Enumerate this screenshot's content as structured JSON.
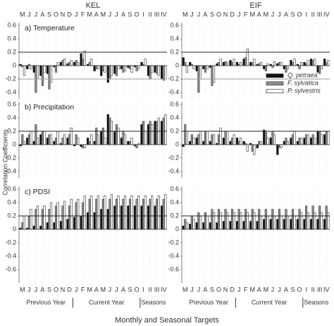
{
  "figure": {
    "columns": [
      "KEL",
      "EIF"
    ],
    "ylabel": "Correlation Coefficients",
    "xlabel": "Monthly and Seasonal Targets",
    "groups": [
      "Previous Year",
      "Current Year",
      "Seasons"
    ]
  },
  "chart_data": [
    {
      "type": "bar",
      "title": "a) Temperature",
      "categories": [
        "M",
        "J",
        "J",
        "A",
        "S",
        "O",
        "N",
        "D",
        "J",
        "F",
        "M",
        "A",
        "M",
        "J",
        "J",
        "A",
        "S",
        "O",
        "I",
        "II",
        "III",
        "IV"
      ],
      "series": [
        {
          "color": "#111111",
          "values": [
            0.02,
            -0.05,
            -0.1,
            -0.15,
            -0.12,
            -0.02,
            0.05,
            0.03,
            0.05,
            0.18,
            0.02,
            -0.08,
            -0.15,
            -0.25,
            -0.12,
            -0.05,
            -0.03,
            -0.02,
            0.05,
            -0.15,
            -0.1,
            -0.2
          ]
        },
        {
          "color": "#8a8a8a",
          "values": [
            -0.02,
            0.02,
            -0.4,
            -0.3,
            -0.35,
            -0.1,
            0.08,
            0.05,
            0.08,
            0.1,
            0.05,
            -0.05,
            -0.08,
            -0.2,
            -0.15,
            -0.1,
            -0.05,
            -0.08,
            0.02,
            -0.2,
            -0.12,
            -0.22
          ]
        },
        {
          "color": "#ffffff",
          "values": [
            -0.15,
            -0.05,
            -0.2,
            -0.1,
            -0.25,
            0.05,
            0.1,
            0.08,
            0.05,
            0.22,
            0.1,
            -0.05,
            -0.1,
            -0.15,
            -0.05,
            -0.08,
            -0.1,
            -0.05,
            0.1,
            -0.1,
            -0.15,
            -0.2
          ]
        }
      ],
      "ylim": [
        -0.5,
        0.6
      ],
      "yticks": [
        0.6,
        0.4,
        0.2,
        0,
        -0.2,
        -0.4
      ],
      "hlines": [
        0.2,
        -0.2
      ]
    },
    {
      "type": "bar",
      "categories": [
        "M",
        "J",
        "J",
        "A",
        "S",
        "O",
        "N",
        "D",
        "J",
        "F",
        "M",
        "A",
        "M",
        "J",
        "J",
        "A",
        "S",
        "O",
        "I",
        "II",
        "III",
        "IV"
      ],
      "series": [
        {
          "name": "Q. petraea",
          "color": "#111111",
          "values": [
            0.12,
            0.05,
            -0.08,
            -0.05,
            -0.03,
            0.03,
            0.05,
            0.08,
            0.05,
            0.1,
            0.05,
            0.02,
            -0.05,
            0.02,
            0.03,
            -0.05,
            0.08,
            0.02,
            0.05,
            0.1,
            -0.1,
            0.1
          ]
        },
        {
          "name": "F. sylvatica",
          "color": "#8a8a8a",
          "values": [
            0.05,
            0.02,
            -0.4,
            -0.1,
            -0.3,
            0.05,
            0.06,
            0.05,
            0.02,
            0.12,
            0.05,
            0.03,
            -0.08,
            -0.03,
            0.05,
            -0.1,
            0.05,
            -0.05,
            0.03,
            0.08,
            -0.12,
            0.05
          ]
        },
        {
          "name": "P. sylvestris",
          "color": "#ffffff",
          "values": [
            -0.1,
            -0.05,
            -0.2,
            -0.05,
            -0.25,
            0.1,
            0.05,
            0.1,
            0.05,
            0.25,
            0.1,
            0.05,
            0.03,
            0.06,
            0.05,
            -0.05,
            0.1,
            0.05,
            0.08,
            0.1,
            -0.05,
            0.08
          ]
        }
      ],
      "ylim": [
        -0.5,
        0.6
      ],
      "yticks": [
        0.6,
        0.4,
        0.2,
        0,
        -0.2,
        -0.4
      ],
      "hlines": [
        0.2,
        -0.2
      ],
      "legend": "lower right"
    },
    {
      "type": "bar",
      "title": "b) Precipitation",
      "categories": [
        "M",
        "J",
        "J",
        "A",
        "S",
        "O",
        "N",
        "D",
        "J",
        "F",
        "M",
        "A",
        "M",
        "J",
        "J",
        "A",
        "S",
        "O",
        "I",
        "II",
        "III",
        "IV"
      ],
      "series": [
        {
          "color": "#111111",
          "values": [
            -0.02,
            0.1,
            0.05,
            0.15,
            0.1,
            0.05,
            0.02,
            0.1,
            -0.02,
            -0.03,
            0.1,
            0.05,
            0.2,
            0.45,
            0.2,
            0.1,
            0.05,
            -0.02,
            0.3,
            0.3,
            0.35,
            0.35
          ]
        },
        {
          "color": "#8a8a8a",
          "values": [
            0.15,
            0.15,
            0.3,
            0.2,
            0.15,
            0.1,
            0.1,
            0.15,
            0.15,
            -0.05,
            0.05,
            0.25,
            0.25,
            0.4,
            0.3,
            0.2,
            0.05,
            -0.05,
            0.35,
            0.35,
            0.35,
            0.4
          ]
        },
        {
          "color": "#ffffff",
          "values": [
            0.05,
            0.2,
            0.1,
            0.2,
            0.15,
            0.2,
            0.15,
            0.25,
            0.1,
            -0.05,
            0.15,
            0.15,
            0.1,
            0.35,
            0.25,
            0.15,
            0.1,
            0.02,
            0.2,
            0.3,
            0.4,
            0.45
          ]
        }
      ],
      "ylim": [
        -0.5,
        0.6
      ],
      "yticks": [
        0.6,
        0.4,
        0.2,
        0,
        -0.2,
        -0.4
      ],
      "hlines": [
        0.2
      ]
    },
    {
      "type": "bar",
      "categories": [
        "M",
        "J",
        "J",
        "A",
        "S",
        "O",
        "N",
        "D",
        "J",
        "F",
        "M",
        "A",
        "M",
        "J",
        "J",
        "A",
        "S",
        "O",
        "I",
        "II",
        "III",
        "IV"
      ],
      "series": [
        {
          "color": "#111111",
          "values": [
            -0.03,
            0.05,
            0.1,
            0.05,
            0.05,
            0.02,
            0.1,
            0.05,
            0.1,
            0.05,
            0.02,
            -0.05,
            0.22,
            0.1,
            -0.15,
            0.05,
            0.1,
            0.05,
            0.1,
            0.1,
            0.2,
            0.15
          ]
        },
        {
          "color": "#8a8a8a",
          "values": [
            0.3,
            0.15,
            0.15,
            0.2,
            0.15,
            0.15,
            0.2,
            0.1,
            0.05,
            0.02,
            -0.1,
            0.05,
            0.2,
            0.2,
            -0.05,
            0.1,
            0.15,
            0.1,
            0.15,
            0.15,
            0.2,
            0.2
          ]
        },
        {
          "color": "#ffffff",
          "values": [
            0.2,
            0.1,
            0.2,
            0.2,
            0.15,
            0.25,
            0.2,
            0.15,
            0.1,
            -0.1,
            -0.15,
            0.05,
            0.1,
            0.15,
            -0.05,
            0.05,
            0.2,
            0.1,
            0.15,
            0.1,
            0.15,
            0.2
          ]
        }
      ],
      "ylim": [
        -0.5,
        0.6
      ],
      "yticks": [
        0.6,
        0.4,
        0.2,
        0,
        -0.2,
        -0.4
      ],
      "hlines": [
        0.2
      ]
    },
    {
      "type": "bar",
      "title": "c) PDSI",
      "categories": [
        "M",
        "J",
        "J",
        "A",
        "S",
        "O",
        "N",
        "D",
        "J",
        "F",
        "M",
        "A",
        "M",
        "J",
        "J",
        "A",
        "S",
        "O",
        "I",
        "II",
        "III",
        "IV"
      ],
      "series": [
        {
          "color": "#111111",
          "values": [
            0.02,
            0.02,
            0.05,
            0.05,
            0.1,
            0.1,
            0.12,
            0.15,
            0.18,
            0.2,
            0.25,
            0.25,
            0.3,
            0.3,
            0.35,
            0.35,
            0.35,
            0.35,
            0.35,
            0.35,
            0.35,
            0.35
          ]
        },
        {
          "color": "#8a8a8a",
          "values": [
            0.1,
            0.2,
            0.3,
            0.3,
            0.3,
            0.35,
            0.35,
            0.35,
            0.4,
            0.4,
            0.45,
            0.45,
            0.45,
            0.45,
            0.45,
            0.45,
            0.45,
            0.45,
            0.45,
            0.45,
            0.45,
            0.45
          ]
        },
        {
          "color": "#ffffff",
          "values": [
            0.2,
            0.3,
            0.35,
            0.35,
            0.4,
            0.4,
            0.42,
            0.45,
            0.45,
            0.5,
            0.5,
            0.5,
            0.5,
            0.52,
            0.5,
            0.5,
            0.5,
            0.5,
            0.5,
            0.5,
            0.5,
            0.52
          ]
        }
      ],
      "ylim": [
        -0.8,
        0.6
      ],
      "yticks": [
        0.6,
        0.4,
        0.2,
        0,
        -0.2,
        -0.4,
        -0.6
      ],
      "hlines": [
        0.2
      ]
    },
    {
      "type": "bar",
      "categories": [
        "M",
        "J",
        "J",
        "A",
        "S",
        "O",
        "N",
        "D",
        "J",
        "F",
        "M",
        "A",
        "M",
        "J",
        "J",
        "A",
        "S",
        "O",
        "I",
        "II",
        "III",
        "IV"
      ],
      "series": [
        {
          "color": "#111111",
          "values": [
            0.05,
            0.08,
            0.1,
            0.1,
            0.1,
            0.1,
            0.12,
            0.12,
            0.12,
            0.12,
            0.12,
            0.12,
            0.15,
            0.15,
            0.15,
            0.15,
            0.15,
            0.15,
            0.15,
            0.15,
            0.15,
            0.15
          ]
        },
        {
          "color": "#8a8a8a",
          "values": [
            0.15,
            0.2,
            0.25,
            0.25,
            0.3,
            0.3,
            0.3,
            0.3,
            0.3,
            0.3,
            0.3,
            0.3,
            0.3,
            0.3,
            0.3,
            0.3,
            0.3,
            0.3,
            0.35,
            0.35,
            0.35,
            0.35
          ]
        },
        {
          "color": "#ffffff",
          "values": [
            0.1,
            0.15,
            0.2,
            0.2,
            0.25,
            0.25,
            0.25,
            0.25,
            0.25,
            0.25,
            0.25,
            0.2,
            0.2,
            0.2,
            0.2,
            0.2,
            0.2,
            0.25,
            0.25,
            0.25,
            0.25,
            0.25
          ]
        }
      ],
      "ylim": [
        -0.8,
        0.6
      ],
      "yticks": [
        0.6,
        0.4,
        0.2,
        0,
        -0.2,
        -0.4,
        -0.6
      ],
      "hlines": [
        0.2
      ]
    }
  ]
}
